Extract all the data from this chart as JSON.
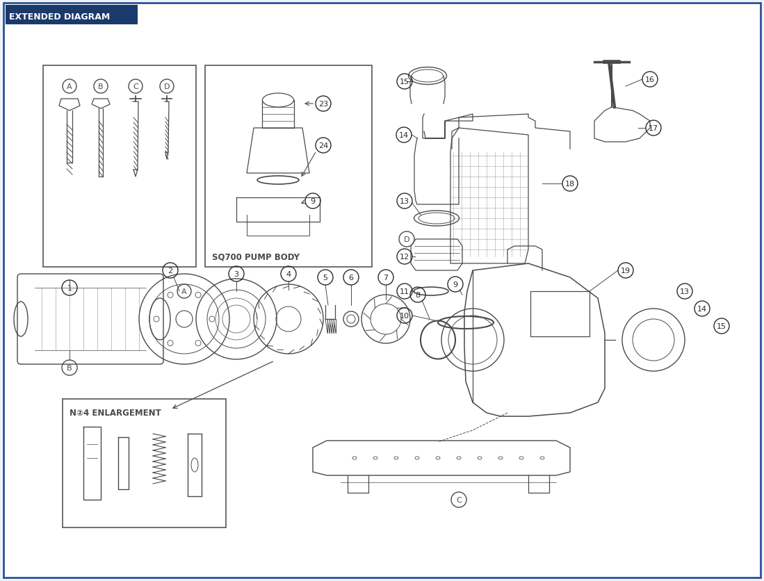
{
  "title": "EXTENDED DIAGRAM",
  "title_bg_color": "#1a3a6b",
  "title_text_color": "#ffffff",
  "border_color": "#2a5298",
  "bg_color": "#f0f4f8",
  "diagram_bg": "#ffffff",
  "line_color": "#4a4a4a",
  "part_numbers": [
    "1",
    "2",
    "3",
    "4",
    "5",
    "6",
    "7",
    "8",
    "9",
    "10",
    "11",
    "12",
    "13",
    "14",
    "15",
    "16",
    "17",
    "18",
    "19",
    "23",
    "24"
  ],
  "letter_labels": [
    "A",
    "B",
    "C",
    "D"
  ],
  "sq700_label": "SQ700 PUMP BODY",
  "no4_label": "N②4 ENLARGEMENT"
}
